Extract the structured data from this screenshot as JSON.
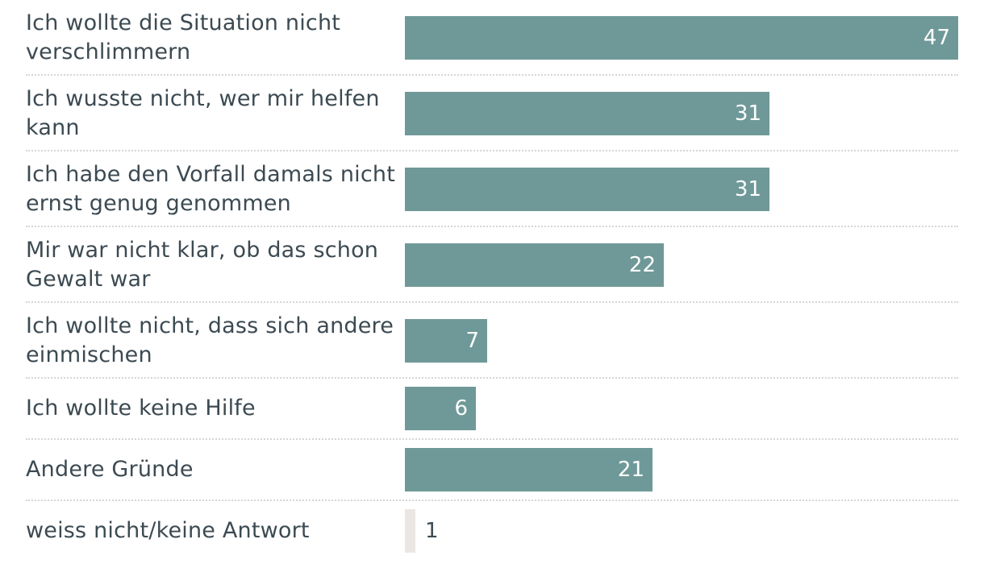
{
  "chart_data": {
    "type": "bar",
    "orientation": "horizontal",
    "title": "",
    "xlabel": "",
    "ylabel": "",
    "xlim": [
      0,
      47
    ],
    "categories": [
      "Ich wollte die Situation nicht verschlimmern",
      "Ich wusste nicht, wer mir helfen kann",
      "Ich habe den Vorfall damals nicht ernst genug genommen",
      "Mir war nicht klar, ob das schon Gewalt war",
      "Ich wollte nicht, dass sich andere einmischen",
      "Ich wollte keine Hilfe",
      "Andere Gründe",
      "weiss nicht/keine Antwort"
    ],
    "values": [
      47,
      31,
      31,
      22,
      7,
      6,
      21,
      1
    ],
    "colors": {
      "bar": "#6f9998",
      "bar_no_answer": "#ebe6e3",
      "label_text": "#3c4a52",
      "value_inside": "#ffffff",
      "separator": "#d6d6d6"
    }
  }
}
